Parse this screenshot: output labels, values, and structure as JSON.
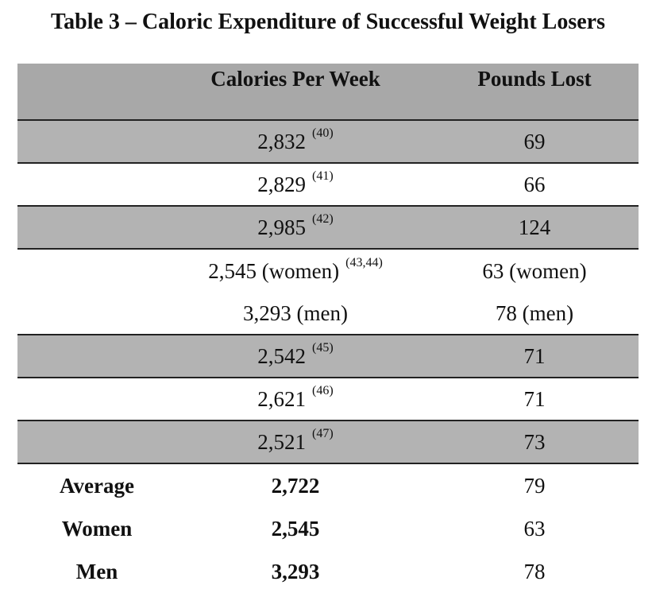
{
  "title": "Table 3 – Caloric Expenditure of Successful Weight Losers",
  "columns": [
    "",
    "Calories Per Week",
    "Pounds Lost"
  ],
  "rows": [
    {
      "label": "",
      "calories": "2,832",
      "ref": "(40)",
      "pounds": "69",
      "shaded": true
    },
    {
      "label": "",
      "calories": "2,829",
      "ref": "(41)",
      "pounds": "66",
      "shaded": false
    },
    {
      "label": "",
      "calories": "2,985",
      "ref": "(42)",
      "pounds": "124",
      "shaded": true
    },
    {
      "label": "",
      "calories": "2,545 (women)",
      "ref": "(43,44)",
      "pounds": "63 (women)",
      "shaded": false
    },
    {
      "label": "",
      "calories": "3,293 (men)",
      "ref": "",
      "pounds": "78 (men)",
      "shaded": false
    },
    {
      "label": "",
      "calories": "2,542",
      "ref": "(45)",
      "pounds": "71",
      "shaded": true
    },
    {
      "label": "",
      "calories": "2,621",
      "ref": "(46)",
      "pounds": "71",
      "shaded": false
    },
    {
      "label": "",
      "calories": "2,521",
      "ref": "(47)",
      "pounds": "73",
      "shaded": true
    }
  ],
  "summary": [
    {
      "label": "Average",
      "calories": "2,722",
      "pounds": "79"
    },
    {
      "label": "Women",
      "calories": "2,545",
      "pounds": "63"
    },
    {
      "label": "Men",
      "calories": "3,293",
      "pounds": "78"
    }
  ],
  "colors": {
    "header_fill": "#a8a8a8",
    "shaded_row_fill": "#b3b3b3",
    "rule": "#222222"
  }
}
